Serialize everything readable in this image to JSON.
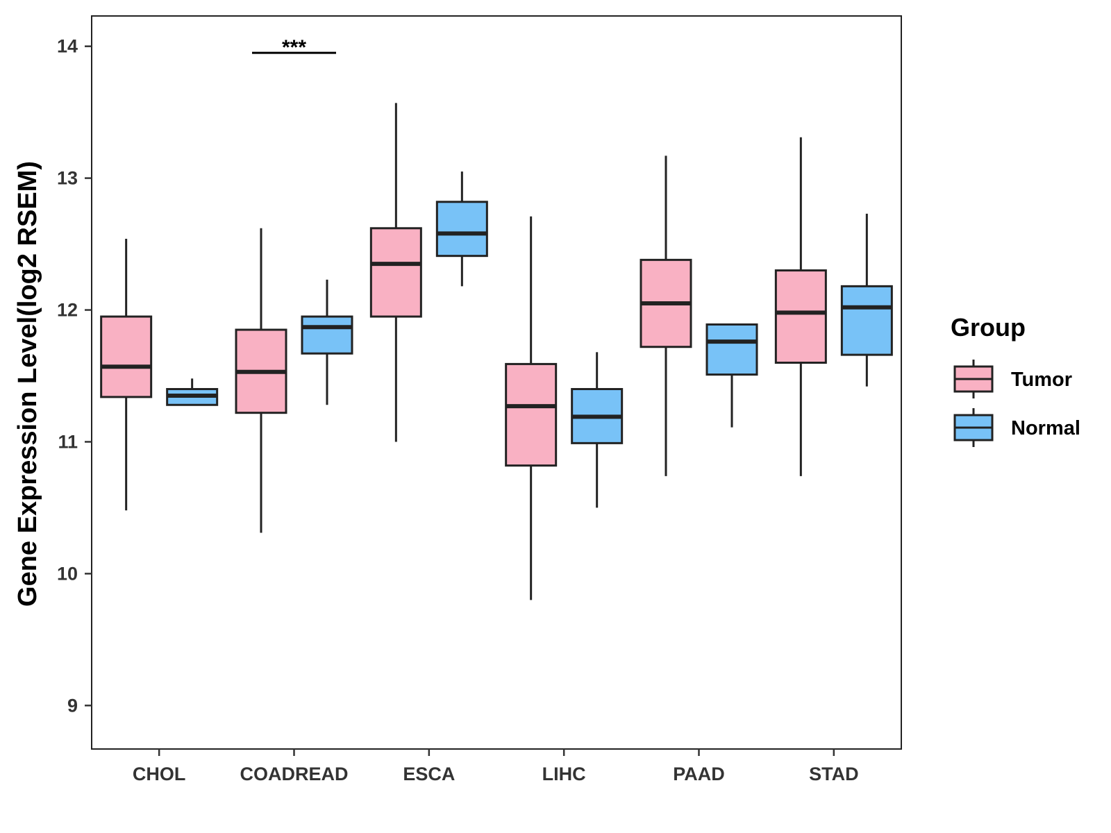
{
  "chart_data": {
    "type": "boxplot",
    "title": "",
    "xlabel": "",
    "ylabel": "Gene Expression Level(log2 RSEM)",
    "ylim": [
      8.67,
      14.23
    ],
    "yticks": [
      9,
      10,
      11,
      12,
      13,
      14
    ],
    "ytick_labels": [
      "9",
      "10",
      "11",
      "12",
      "13",
      "14"
    ],
    "categories": [
      "CHOL",
      "COADREAD",
      "ESCA",
      "LIHC",
      "PAAD",
      "STAD"
    ],
    "legend": {
      "title": "Group",
      "position": "right"
    },
    "series": [
      {
        "name": "Tumor",
        "color": "#F9B1C3",
        "boxes": [
          {
            "category": "CHOL",
            "whisker_low": 10.48,
            "q1": 11.34,
            "median": 11.57,
            "q3": 11.95,
            "whisker_high": 12.54
          },
          {
            "category": "COADREAD",
            "whisker_low": 10.31,
            "q1": 11.22,
            "median": 11.53,
            "q3": 11.85,
            "whisker_high": 12.62
          },
          {
            "category": "ESCA",
            "whisker_low": 11.0,
            "q1": 11.95,
            "median": 12.35,
            "q3": 12.62,
            "whisker_high": 13.57
          },
          {
            "category": "LIHC",
            "whisker_low": 9.8,
            "q1": 10.82,
            "median": 11.27,
            "q3": 11.59,
            "whisker_high": 12.71
          },
          {
            "category": "PAAD",
            "whisker_low": 10.74,
            "q1": 11.72,
            "median": 12.05,
            "q3": 12.38,
            "whisker_high": 13.17
          },
          {
            "category": "STAD",
            "whisker_low": 10.74,
            "q1": 11.6,
            "median": 11.98,
            "q3": 12.3,
            "whisker_high": 13.31
          }
        ]
      },
      {
        "name": "Normal",
        "color": "#78C2F7",
        "boxes": [
          {
            "category": "CHOL",
            "whisker_low": 11.28,
            "q1": 11.28,
            "median": 11.35,
            "q3": 11.4,
            "whisker_high": 11.48
          },
          {
            "category": "COADREAD",
            "whisker_low": 11.28,
            "q1": 11.67,
            "median": 11.87,
            "q3": 11.95,
            "whisker_high": 12.23
          },
          {
            "category": "ESCA",
            "whisker_low": 12.18,
            "q1": 12.41,
            "median": 12.58,
            "q3": 12.82,
            "whisker_high": 13.05
          },
          {
            "category": "LIHC",
            "whisker_low": 10.5,
            "q1": 10.99,
            "median": 11.19,
            "q3": 11.4,
            "whisker_high": 11.68
          },
          {
            "category": "PAAD",
            "whisker_low": 11.11,
            "q1": 11.51,
            "median": 11.76,
            "q3": 11.89,
            "whisker_high": 11.89
          },
          {
            "category": "STAD",
            "whisker_low": 11.42,
            "q1": 11.66,
            "median": 12.02,
            "q3": 12.18,
            "whisker_high": 12.73
          }
        ]
      }
    ],
    "annotations": [
      {
        "category": "COADREAD",
        "label": "***",
        "y": 13.95
      }
    ]
  }
}
